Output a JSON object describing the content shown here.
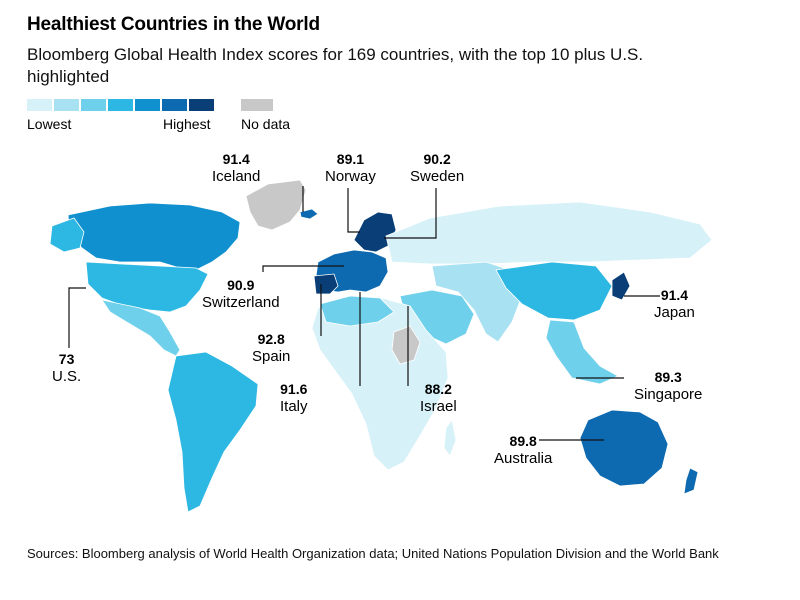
{
  "header": {
    "title": "Healthiest Countries in the World",
    "subtitle": "Bloomberg Global Health Index scores for 169 countries, with the top 10 plus U.S. highlighted"
  },
  "legend": {
    "low_label": "Lowest",
    "high_label": "Highest",
    "nodata_label": "No data",
    "scale_colors": [
      "#d6f1f8",
      "#a8e2f2",
      "#6fd0ec",
      "#2cb8e3",
      "#1190d0",
      "#0e6ab0",
      "#0a3e77"
    ],
    "nodata_color": "#c8c8c8"
  },
  "callouts": [
    {
      "id": "iceland",
      "score": "91.4",
      "country": "Iceland"
    },
    {
      "id": "norway",
      "score": "89.1",
      "country": "Norway"
    },
    {
      "id": "sweden",
      "score": "90.2",
      "country": "Sweden"
    },
    {
      "id": "switzerland",
      "score": "90.9",
      "country": "Switzerland"
    },
    {
      "id": "spain",
      "score": "92.8",
      "country": "Spain"
    },
    {
      "id": "italy",
      "score": "91.6",
      "country": "Italy"
    },
    {
      "id": "israel",
      "score": "88.2",
      "country": "Israel"
    },
    {
      "id": "japan",
      "score": "91.4",
      "country": "Japan"
    },
    {
      "id": "singapore",
      "score": "89.3",
      "country": "Singapore"
    },
    {
      "id": "australia",
      "score": "89.8",
      "country": "Australia"
    },
    {
      "id": "us",
      "score": "73",
      "country": "U.S."
    }
  ],
  "footer": {
    "source": "Sources: Bloomberg analysis of World Health Organization data; United Nations Population Division and the World Bank"
  }
}
